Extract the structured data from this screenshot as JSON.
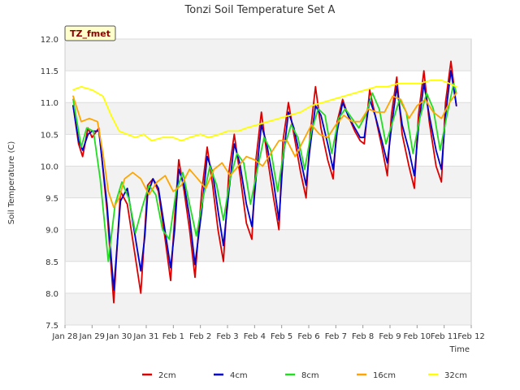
{
  "chart_data": {
    "type": "line",
    "title": "Tonzi Soil Temperature Set A",
    "xlabel": "Time",
    "ylabel": "Soil Temperature (C)",
    "ylim": [
      7.5,
      12.0
    ],
    "xlim": [
      "Jan 28",
      "Feb 12"
    ],
    "y_ticks": [
      "7.5",
      "8.0",
      "8.5",
      "9.0",
      "9.5",
      "10.0",
      "10.5",
      "11.0",
      "11.5",
      "12.0"
    ],
    "x_ticks": [
      "Jan 28",
      "Jan 29",
      "Jan 30",
      "Jan 31",
      "Feb 1",
      "Feb 2",
      "Feb 3",
      "Feb 4",
      "Feb 5",
      "Feb 6",
      "Feb 7",
      "Feb 8",
      "Feb 9",
      "Feb 10",
      "Feb 11",
      "Feb 12"
    ],
    "grid": true,
    "banded_background": true,
    "legend_position": "bottom",
    "annotation": "TZ_fmet",
    "x_units": "days after Jan 28",
    "series": [
      {
        "name": "2cm",
        "color": "#dd0000",
        "x": [
          0.3,
          0.5,
          0.65,
          0.85,
          1.0,
          1.25,
          1.55,
          1.8,
          2.05,
          2.3,
          2.55,
          2.8,
          2.95,
          3.05,
          3.25,
          3.45,
          3.65,
          3.9,
          4.05,
          4.2,
          4.4,
          4.6,
          4.8,
          5.05,
          5.25,
          5.45,
          5.65,
          5.85,
          6.05,
          6.25,
          6.45,
          6.7,
          6.9,
          7.05,
          7.25,
          7.45,
          7.7,
          7.9,
          8.05,
          8.25,
          8.45,
          8.7,
          8.9,
          9.05,
          9.25,
          9.45,
          9.7,
          9.9,
          10.05,
          10.25,
          10.45,
          10.7,
          10.9,
          11.05,
          11.25,
          11.45,
          11.7,
          11.9,
          12.05,
          12.25,
          12.45,
          12.7,
          12.9,
          13.05,
          13.25,
          13.45,
          13.7,
          13.9,
          14.05,
          14.25,
          14.45
        ],
        "values": [
          10.95,
          10.35,
          10.15,
          10.6,
          10.45,
          10.6,
          9.3,
          7.85,
          9.6,
          9.4,
          8.7,
          8.0,
          9.0,
          9.7,
          9.8,
          9.6,
          9.0,
          8.2,
          9.2,
          10.1,
          9.6,
          9.0,
          8.25,
          9.6,
          10.3,
          9.7,
          9.0,
          8.5,
          9.9,
          10.5,
          9.9,
          9.1,
          8.85,
          10.1,
          10.85,
          10.2,
          9.5,
          9.0,
          10.4,
          11.0,
          10.5,
          9.9,
          9.5,
          10.5,
          11.25,
          10.6,
          10.1,
          9.8,
          10.7,
          11.05,
          10.8,
          10.55,
          10.4,
          10.35,
          11.2,
          10.8,
          10.3,
          9.85,
          10.8,
          11.4,
          10.5,
          10.0,
          9.65,
          10.8,
          11.5,
          10.7,
          10.0,
          9.75,
          11.0,
          11.65,
          10.95
        ]
      },
      {
        "name": "4cm",
        "color": "#0000cc",
        "x": [
          0.3,
          0.5,
          0.65,
          0.85,
          1.0,
          1.25,
          1.55,
          1.8,
          2.05,
          2.3,
          2.55,
          2.8,
          2.95,
          3.05,
          3.25,
          3.45,
          3.65,
          3.9,
          4.05,
          4.2,
          4.4,
          4.6,
          4.8,
          5.05,
          5.25,
          5.45,
          5.65,
          5.85,
          6.05,
          6.25,
          6.45,
          6.7,
          6.9,
          7.05,
          7.25,
          7.45,
          7.7,
          7.9,
          8.05,
          8.25,
          8.45,
          8.7,
          8.9,
          9.05,
          9.25,
          9.45,
          9.7,
          9.9,
          10.05,
          10.25,
          10.45,
          10.7,
          10.9,
          11.05,
          11.25,
          11.45,
          11.7,
          11.9,
          12.05,
          12.25,
          12.45,
          12.7,
          12.9,
          13.05,
          13.25,
          13.45,
          13.7,
          13.9,
          14.05,
          14.25,
          14.45
        ],
        "values": [
          10.95,
          10.4,
          10.25,
          10.5,
          10.55,
          10.55,
          9.4,
          8.05,
          9.45,
          9.65,
          9.0,
          8.35,
          8.9,
          9.55,
          9.8,
          9.65,
          9.1,
          8.4,
          9.0,
          9.95,
          9.7,
          9.2,
          8.45,
          9.3,
          10.15,
          9.9,
          9.3,
          8.75,
          9.6,
          10.35,
          10.05,
          9.4,
          9.05,
          9.8,
          10.65,
          10.35,
          9.75,
          9.15,
          10.1,
          10.85,
          10.6,
          10.1,
          9.7,
          10.3,
          10.95,
          10.8,
          10.35,
          9.95,
          10.55,
          11.0,
          10.8,
          10.6,
          10.45,
          10.45,
          11.05,
          10.8,
          10.4,
          10.05,
          10.6,
          11.25,
          10.65,
          10.25,
          9.85,
          10.6,
          11.3,
          10.8,
          10.25,
          9.95,
          10.8,
          11.5,
          10.95
        ]
      },
      {
        "name": "8cm",
        "color": "#22dd22",
        "x": [
          0.3,
          0.6,
          0.8,
          1.05,
          1.3,
          1.6,
          1.85,
          2.1,
          2.35,
          2.6,
          2.85,
          3.1,
          3.35,
          3.6,
          3.85,
          4.1,
          4.35,
          4.6,
          4.85,
          5.1,
          5.35,
          5.6,
          5.85,
          6.1,
          6.35,
          6.6,
          6.85,
          7.1,
          7.35,
          7.6,
          7.85,
          8.1,
          8.35,
          8.6,
          8.85,
          9.1,
          9.35,
          9.6,
          9.85,
          10.1,
          10.35,
          10.6,
          10.85,
          11.1,
          11.35,
          11.6,
          11.85,
          12.1,
          12.35,
          12.6,
          12.85,
          13.1,
          13.35,
          13.6,
          13.85,
          14.1,
          14.35,
          14.45
        ],
        "values": [
          11.05,
          10.3,
          10.6,
          10.55,
          9.8,
          8.5,
          9.4,
          9.75,
          9.5,
          8.95,
          9.35,
          9.7,
          9.55,
          9.0,
          8.85,
          9.6,
          9.9,
          9.4,
          8.9,
          9.5,
          10.0,
          9.7,
          9.15,
          9.8,
          10.2,
          10.05,
          9.4,
          9.95,
          10.45,
          10.25,
          9.6,
          10.3,
          10.65,
          10.45,
          9.95,
          10.55,
          10.9,
          10.8,
          10.2,
          10.75,
          10.9,
          10.75,
          10.6,
          10.8,
          11.15,
          10.9,
          10.35,
          10.7,
          11.05,
          10.85,
          10.2,
          10.75,
          11.15,
          10.9,
          10.25,
          10.8,
          11.3,
          11.15
        ]
      },
      {
        "name": "16cm",
        "color": "#ffa500",
        "x": [
          0.3,
          0.6,
          0.9,
          1.2,
          1.4,
          1.6,
          1.8,
          2.0,
          2.2,
          2.5,
          2.8,
          3.1,
          3.4,
          3.7,
          4.0,
          4.3,
          4.6,
          4.9,
          5.2,
          5.5,
          5.8,
          6.1,
          6.4,
          6.7,
          7.0,
          7.3,
          7.6,
          7.9,
          8.2,
          8.5,
          8.8,
          9.1,
          9.4,
          9.7,
          10.0,
          10.3,
          10.6,
          10.9,
          11.2,
          11.5,
          11.8,
          12.1,
          12.4,
          12.7,
          13.0,
          13.3,
          13.6,
          13.9,
          14.2,
          14.45
        ],
        "values": [
          11.1,
          10.7,
          10.75,
          10.7,
          10.2,
          9.6,
          9.35,
          9.5,
          9.8,
          9.9,
          9.8,
          9.55,
          9.75,
          9.85,
          9.6,
          9.7,
          9.95,
          9.8,
          9.65,
          9.95,
          10.05,
          9.85,
          10.0,
          10.15,
          10.1,
          10.0,
          10.2,
          10.4,
          10.4,
          10.15,
          10.4,
          10.65,
          10.5,
          10.45,
          10.65,
          10.8,
          10.7,
          10.7,
          10.9,
          10.85,
          10.85,
          11.1,
          11.05,
          10.75,
          10.95,
          11.05,
          10.85,
          10.75,
          11.0,
          11.15
        ]
      },
      {
        "name": "32cm",
        "color": "#ffff00",
        "x": [
          0.3,
          0.6,
          1.0,
          1.4,
          1.7,
          2.0,
          2.3,
          2.6,
          2.9,
          3.2,
          3.6,
          4.0,
          4.3,
          4.6,
          5.0,
          5.3,
          5.7,
          6.0,
          6.4,
          6.7,
          7.1,
          7.5,
          7.9,
          8.3,
          8.7,
          9.1,
          9.5,
          9.9,
          10.3,
          10.7,
          11.1,
          11.5,
          11.9,
          12.3,
          12.7,
          13.1,
          13.5,
          13.9,
          14.2,
          14.45
        ],
        "values": [
          11.2,
          11.25,
          11.2,
          11.1,
          10.8,
          10.55,
          10.5,
          10.45,
          10.5,
          10.4,
          10.45,
          10.45,
          10.4,
          10.45,
          10.5,
          10.45,
          10.5,
          10.55,
          10.55,
          10.6,
          10.65,
          10.7,
          10.75,
          10.8,
          10.85,
          10.95,
          11.0,
          11.05,
          11.1,
          11.15,
          11.2,
          11.25,
          11.25,
          11.3,
          11.3,
          11.3,
          11.35,
          11.35,
          11.3,
          11.25
        ]
      }
    ]
  }
}
